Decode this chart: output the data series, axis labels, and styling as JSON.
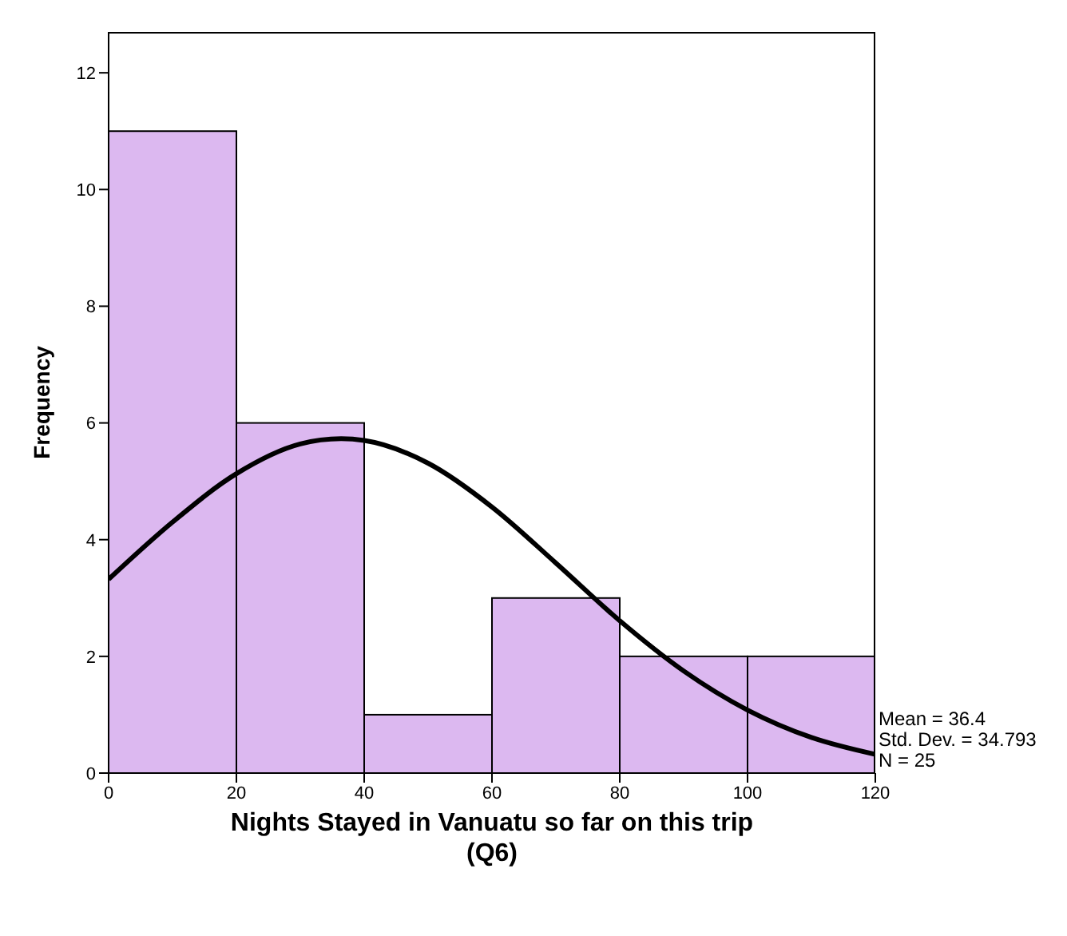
{
  "chart_data": {
    "type": "histogram",
    "xlabel": "Nights Stayed in Vanuatu so far on this trip (Q6)",
    "ylabel": "Frequency",
    "bins": [
      0,
      20,
      40,
      60,
      80,
      100,
      120
    ],
    "values": [
      11,
      6,
      1,
      3,
      2,
      2
    ],
    "color": "#dcb8f0",
    "series": [
      {
        "type": "line",
        "color": "#000000",
        "x": [
          0,
          10,
          20,
          30,
          36.4,
          40,
          50,
          60,
          70,
          80,
          90,
          100,
          110,
          120
        ],
        "values": [
          3.32,
          4.3,
          5.13,
          5.64,
          5.73,
          5.7,
          5.31,
          4.56,
          3.6,
          2.61,
          1.75,
          1.08,
          0.61,
          0.32
        ]
      }
    ],
    "xlim": [
      0,
      120
    ],
    "xticks": [
      0,
      20,
      40,
      60,
      80,
      100,
      120
    ],
    "ylim": [
      0,
      12.7
    ],
    "yticks": [
      0,
      2,
      4,
      6,
      8,
      10,
      12
    ],
    "annotations": [
      "Mean = 36.4",
      "Std. Dev. = 34.793",
      "N = 25"
    ],
    "grid": false,
    "marker": "none",
    "line_style": "solid"
  }
}
